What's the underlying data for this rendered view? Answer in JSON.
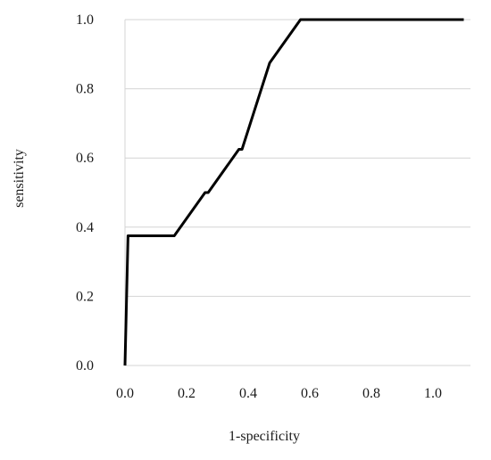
{
  "chart_data": {
    "type": "line",
    "title": "",
    "xlabel": "1-specificity",
    "ylabel": "sensitivity",
    "xlim": [
      0,
      1.1
    ],
    "ylim": [
      0,
      1.0
    ],
    "x_ticks": [
      0.0,
      0.2,
      0.4,
      0.6,
      0.8,
      1.0
    ],
    "x_tick_labels": [
      "0.0",
      "0.2",
      "0.4",
      "0.6",
      "0.8",
      "1.0"
    ],
    "y_ticks": [
      0.0,
      0.2,
      0.4,
      0.6,
      0.8,
      1.0
    ],
    "y_tick_labels": [
      "0.0",
      "0.2",
      "0.4",
      "0.6",
      "0.8",
      "1.0"
    ],
    "grid": "horizontal",
    "legend": "none",
    "series": [
      {
        "color": "#000000",
        "x": [
          0.0,
          0.01,
          0.16,
          0.26,
          0.27,
          0.37,
          0.38,
          0.47,
          0.57,
          1.1
        ],
        "y": [
          0.0,
          0.375,
          0.375,
          0.5,
          0.5,
          0.625,
          0.625,
          0.875,
          1.0,
          1.0
        ]
      }
    ]
  }
}
